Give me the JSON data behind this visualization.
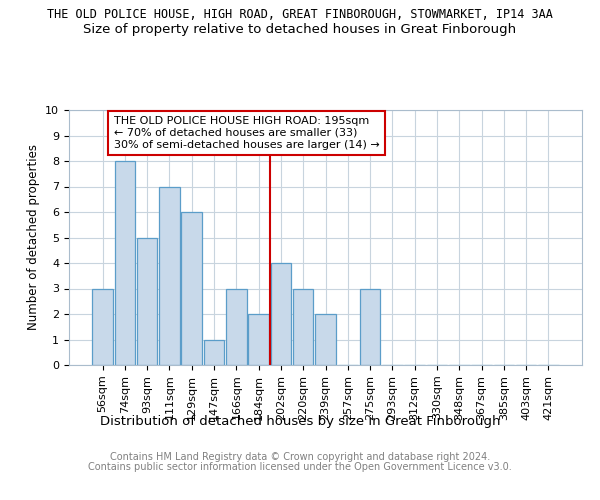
{
  "title": "THE OLD POLICE HOUSE, HIGH ROAD, GREAT FINBOROUGH, STOWMARKET, IP14 3AA",
  "subtitle": "Size of property relative to detached houses in Great Finborough",
  "xlabel": "Distribution of detached houses by size in Great Finborough",
  "ylabel": "Number of detached properties",
  "categories": [
    "56sqm",
    "74sqm",
    "93sqm",
    "111sqm",
    "129sqm",
    "147sqm",
    "166sqm",
    "184sqm",
    "202sqm",
    "220sqm",
    "239sqm",
    "257sqm",
    "275sqm",
    "293sqm",
    "312sqm",
    "330sqm",
    "348sqm",
    "367sqm",
    "385sqm",
    "403sqm",
    "421sqm"
  ],
  "values": [
    3,
    8,
    5,
    7,
    6,
    1,
    3,
    2,
    4,
    3,
    2,
    0,
    3,
    0,
    0,
    0,
    0,
    0,
    0,
    0,
    0
  ],
  "bar_color": "#c8d9ea",
  "bar_edge_color": "#5b9dc9",
  "marker_line_color": "#cc0000",
  "annotation_text": "THE OLD POLICE HOUSE HIGH ROAD: 195sqm\n← 70% of detached houses are smaller (33)\n30% of semi-detached houses are larger (14) →",
  "annotation_box_color": "#ffffff",
  "annotation_box_edge": "#cc0000",
  "ylim": [
    0,
    10
  ],
  "yticks": [
    0,
    1,
    2,
    3,
    4,
    5,
    6,
    7,
    8,
    9,
    10
  ],
  "footnote1": "Contains HM Land Registry data © Crown copyright and database right 2024.",
  "footnote2": "Contains public sector information licensed under the Open Government Licence v3.0.",
  "title_fontsize": 8.5,
  "subtitle_fontsize": 9.5,
  "xlabel_fontsize": 9.5,
  "ylabel_fontsize": 8.5,
  "tick_fontsize": 8,
  "annot_fontsize": 8,
  "footnote_fontsize": 7,
  "grid_color": "#c8d4de",
  "background_color": "#ffffff"
}
